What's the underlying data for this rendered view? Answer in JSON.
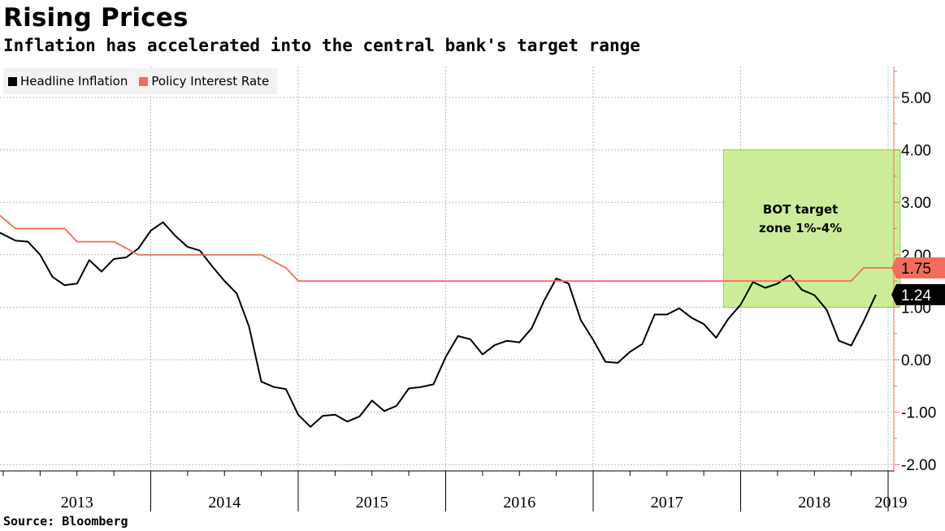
{
  "title": "Rising Prices",
  "subtitle": "Inflation has accelerated into the central bank's target range",
  "source": "Source: Bloomberg",
  "chart_data": {
    "type": "line",
    "title": "Rising Prices",
    "subtitle": "Inflation has accelerated into the central bank's target range",
    "legend": {
      "placement": "top-left",
      "items": [
        "Headline Inflation",
        "Policy Interest Rate"
      ]
    },
    "colors": {
      "Headline Inflation": "#000000",
      "Policy Interest Rate": "#f26d5b",
      "target_zone": "#cdec9a",
      "target_zone_border": "#8fcf3c"
    },
    "grid": true,
    "y_axis": {
      "side": "right",
      "ylim": [
        -2.1,
        5.6
      ],
      "ticks": [
        5.0,
        4.0,
        3.0,
        2.0,
        1.0,
        0.0,
        -1.0,
        -2.0
      ],
      "tick_labels": [
        "5.00",
        "4.00",
        "3.00",
        "2.00",
        "1.00",
        "0.00",
        "-1.00",
        "-2.00"
      ]
    },
    "x_axis": {
      "years": [
        "2013",
        "2014",
        "2015",
        "2016",
        "2017",
        "2018",
        "2019"
      ]
    },
    "series": [
      {
        "name": "Headline Inflation",
        "values": [
          {
            "x": "2013-01",
            "y": 2.42
          },
          {
            "x": "2013-02",
            "y": 2.27
          },
          {
            "x": "2013-03",
            "y": 2.25
          },
          {
            "x": "2013-04",
            "y": 2.0
          },
          {
            "x": "2013-05",
            "y": 1.58
          },
          {
            "x": "2013-06",
            "y": 1.42
          },
          {
            "x": "2013-07",
            "y": 1.45
          },
          {
            "x": "2013-08",
            "y": 1.9
          },
          {
            "x": "2013-09",
            "y": 1.68
          },
          {
            "x": "2013-10",
            "y": 1.92
          },
          {
            "x": "2013-11",
            "y": 1.95
          },
          {
            "x": "2013-12",
            "y": 2.12
          },
          {
            "x": "2014-01",
            "y": 2.46
          },
          {
            "x": "2014-02",
            "y": 2.62
          },
          {
            "x": "2014-03",
            "y": 2.36
          },
          {
            "x": "2014-04",
            "y": 2.15
          },
          {
            "x": "2014-05",
            "y": 2.08
          },
          {
            "x": "2014-06",
            "y": 1.78
          },
          {
            "x": "2014-07",
            "y": 1.5
          },
          {
            "x": "2014-08",
            "y": 1.26
          },
          {
            "x": "2014-09",
            "y": 0.63
          },
          {
            "x": "2014-10",
            "y": -0.42
          },
          {
            "x": "2014-11",
            "y": -0.52
          },
          {
            "x": "2014-12",
            "y": -0.56
          },
          {
            "x": "2015-01",
            "y": -1.05
          },
          {
            "x": "2015-02",
            "y": -1.28
          },
          {
            "x": "2015-03",
            "y": -1.07
          },
          {
            "x": "2015-04",
            "y": -1.05
          },
          {
            "x": "2015-05",
            "y": -1.18
          },
          {
            "x": "2015-06",
            "y": -1.08
          },
          {
            "x": "2015-07",
            "y": -0.78
          },
          {
            "x": "2015-08",
            "y": -0.98
          },
          {
            "x": "2015-09",
            "y": -0.88
          },
          {
            "x": "2015-10",
            "y": -0.55
          },
          {
            "x": "2015-11",
            "y": -0.52
          },
          {
            "x": "2015-12",
            "y": -0.47
          },
          {
            "x": "2016-01",
            "y": 0.05
          },
          {
            "x": "2016-02",
            "y": 0.45
          },
          {
            "x": "2016-03",
            "y": 0.39
          },
          {
            "x": "2016-04",
            "y": 0.1
          },
          {
            "x": "2016-05",
            "y": 0.28
          },
          {
            "x": "2016-06",
            "y": 0.36
          },
          {
            "x": "2016-07",
            "y": 0.33
          },
          {
            "x": "2016-08",
            "y": 0.6
          },
          {
            "x": "2016-09",
            "y": 1.12
          },
          {
            "x": "2016-10",
            "y": 1.55
          },
          {
            "x": "2016-11",
            "y": 1.45
          },
          {
            "x": "2016-12",
            "y": 0.75
          },
          {
            "x": "2017-01",
            "y": 0.38
          },
          {
            "x": "2017-02",
            "y": -0.04
          },
          {
            "x": "2017-03",
            "y": -0.06
          },
          {
            "x": "2017-04",
            "y": 0.15
          },
          {
            "x": "2017-05",
            "y": 0.3
          },
          {
            "x": "2017-06",
            "y": 0.86
          },
          {
            "x": "2017-07",
            "y": 0.86
          },
          {
            "x": "2017-08",
            "y": 0.98
          },
          {
            "x": "2017-09",
            "y": 0.8
          },
          {
            "x": "2017-10",
            "y": 0.68
          },
          {
            "x": "2017-11",
            "y": 0.42
          },
          {
            "x": "2017-12",
            "y": 0.78
          },
          {
            "x": "2018-01",
            "y": 1.05
          },
          {
            "x": "2018-02",
            "y": 1.48
          },
          {
            "x": "2018-03",
            "y": 1.37
          },
          {
            "x": "2018-04",
            "y": 1.45
          },
          {
            "x": "2018-05",
            "y": 1.61
          },
          {
            "x": "2018-06",
            "y": 1.33
          },
          {
            "x": "2018-07",
            "y": 1.23
          },
          {
            "x": "2018-08",
            "y": 0.95
          },
          {
            "x": "2018-09",
            "y": 0.36
          },
          {
            "x": "2018-10",
            "y": 0.27
          },
          {
            "x": "2018-11",
            "y": 0.73
          },
          {
            "x": "2018-12",
            "y": 1.24
          }
        ]
      },
      {
        "name": "Policy Interest Rate",
        "values": [
          {
            "x": "2013-01",
            "y": 2.75
          },
          {
            "x": "2013-02",
            "y": 2.5
          },
          {
            "x": "2013-06",
            "y": 2.5
          },
          {
            "x": "2013-07",
            "y": 2.25
          },
          {
            "x": "2013-10",
            "y": 2.25
          },
          {
            "x": "2013-12",
            "y": 2.0
          },
          {
            "x": "2014-10",
            "y": 2.0
          },
          {
            "x": "2014-12",
            "y": 1.75
          },
          {
            "x": "2015-01",
            "y": 1.5
          },
          {
            "x": "2018-10",
            "y": 1.5
          },
          {
            "x": "2018-11",
            "y": 1.75
          },
          {
            "x": "2018-12",
            "y": 1.75
          }
        ]
      }
    ],
    "annotations": [
      {
        "type": "zone",
        "label_lines": [
          "BOT target",
          "zone 1%-4%"
        ],
        "x_from": "2017-12",
        "x_to": "2018-12",
        "y_from": 1.0,
        "y_to": 4.0
      }
    ],
    "end_labels": [
      {
        "series": "Policy Interest Rate",
        "text": "1.75",
        "value": 1.75
      },
      {
        "series": "Headline Inflation",
        "text": "1.24",
        "value": 1.24
      }
    ]
  }
}
